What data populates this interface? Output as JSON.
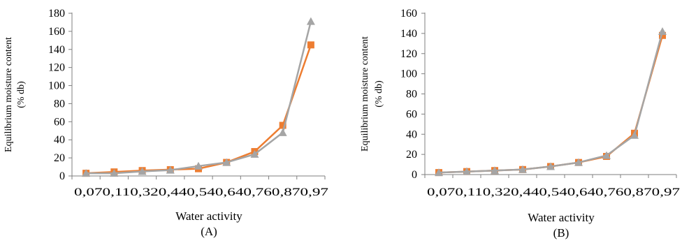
{
  "chart_data": [
    {
      "type": "line",
      "panel_label": "(A)",
      "xlabel": "Water activity",
      "ylabel_line1": "Equilibrium moisture content",
      "ylabel_line2": "(% db)",
      "categories": [
        "0,07",
        "0,11",
        "0,32",
        "0,44",
        "0,54",
        "0,64",
        "0,76",
        "0,87",
        "0,97"
      ],
      "xtick_text": "0,070,110,320,440,540,640,760,870,97",
      "ylim": [
        0,
        180
      ],
      "yticks": [
        0,
        20,
        40,
        60,
        80,
        100,
        120,
        140,
        160,
        180
      ],
      "grid": false,
      "series": [
        {
          "color": "#ED7D31",
          "marker": "square",
          "values": [
            3,
            4.5,
            6,
            7,
            8,
            15,
            27,
            56,
            145
          ]
        },
        {
          "color": "#A5A5A5",
          "marker": "triangle",
          "values": [
            3,
            3,
            5,
            6.5,
            11,
            15,
            24,
            48,
            171
          ]
        }
      ]
    },
    {
      "type": "line",
      "panel_label": "(B)",
      "xlabel": "Water activity",
      "ylabel_line1": "Equilibrium moisture content",
      "ylabel_line2": "(% db)",
      "categories": [
        "0,07",
        "0,11",
        "0,32",
        "0,44",
        "0,54",
        "0,64",
        "0,76",
        "0,87",
        "0,97"
      ],
      "xtick_text": "0,070,110,320,440,540,640,760,870,97",
      "ylim": [
        0,
        160
      ],
      "yticks": [
        0,
        20,
        40,
        60,
        80,
        100,
        120,
        140,
        160
      ],
      "grid": false,
      "series": [
        {
          "color": "#ED7D31",
          "marker": "square",
          "values": [
            2,
            3,
            4,
            5,
            8,
            12,
            18,
            41,
            138
          ]
        },
        {
          "color": "#A5A5A5",
          "marker": "triangle",
          "values": [
            2,
            3,
            4,
            5,
            8,
            12,
            19,
            39,
            142
          ]
        }
      ]
    }
  ]
}
